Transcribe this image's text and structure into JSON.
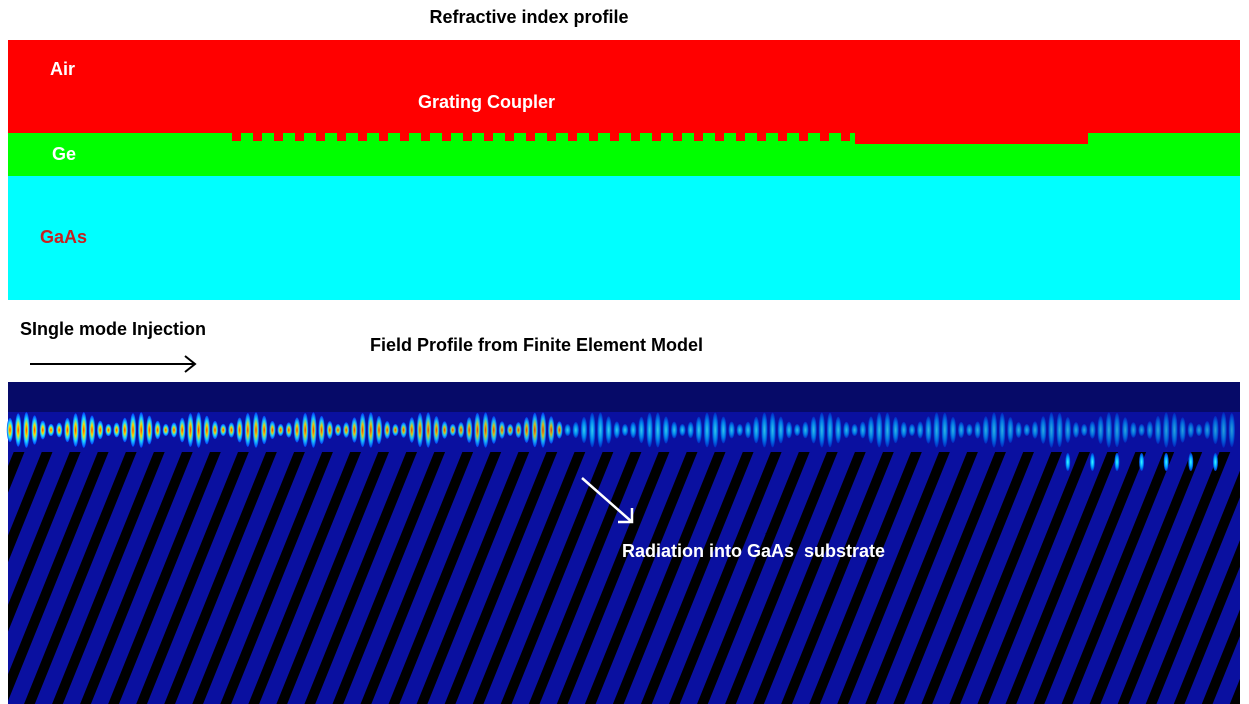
{
  "title": "Refractive index profile",
  "index_profile": {
    "labels": {
      "air": "Air",
      "coupler": "Grating Coupler",
      "ge": "Ge",
      "gaas": "GaAs"
    }
  },
  "injection_label": "SIngle mode Injection",
  "field_profile": {
    "title": "Field Profile from Finite Element Model",
    "annotation": "Radiation into GaAs  substrate"
  }
}
